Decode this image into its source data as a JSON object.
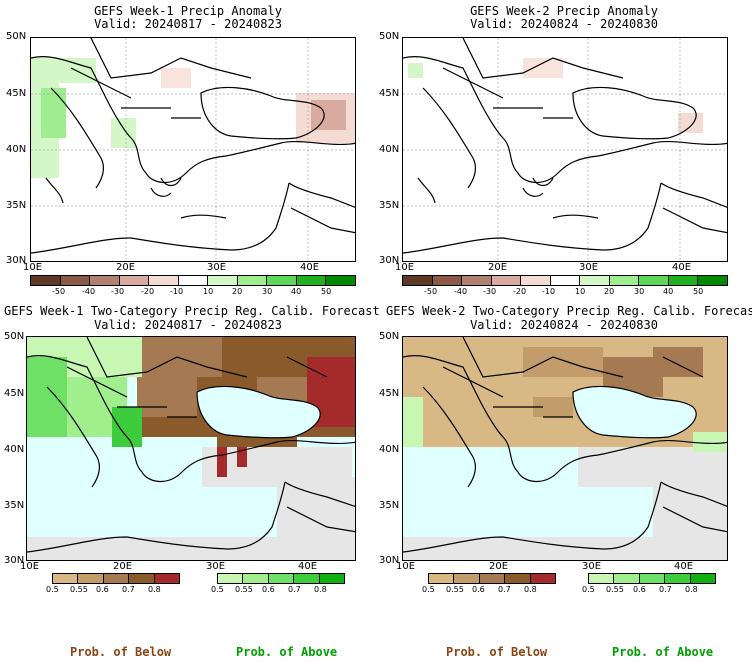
{
  "panels": [
    {
      "title": "GEFS Week-1 Precip Anomaly",
      "valid": "Valid: 20240817 - 20240823"
    },
    {
      "title": "GEFS Week-2 Precip Anomaly",
      "valid": "Valid: 20240824 - 20240830"
    },
    {
      "title": "GEFS Week-1 Two-Category Precip Reg. Calib. Forecast",
      "valid": "Valid: 20240817 - 20240823"
    },
    {
      "title": "GEFS Week-2 Two-Category Precip Reg. Calib. Forecast",
      "valid": "Valid: 20240824 - 20240830"
    }
  ],
  "axes": {
    "lat_labels": [
      "50N",
      "45N",
      "40N",
      "35N",
      "30N"
    ],
    "lon_labels": [
      "10E",
      "20E",
      "30E",
      "40E"
    ]
  },
  "anomaly_colorbar": {
    "labels": [
      "-50",
      "-40",
      "-30",
      "-20",
      "-10",
      "10",
      "20",
      "30",
      "40",
      "50"
    ],
    "colors": [
      "#5e3a26",
      "#8a5a46",
      "#b08070",
      "#d8aaa0",
      "#f4dcd4",
      "#ffffff",
      "#d4f7c8",
      "#9eee90",
      "#5ed85a",
      "#20b020",
      "#008a00"
    ]
  },
  "below_colorbar": {
    "labels": [
      "0.5",
      "0.55",
      "0.6",
      "0.7",
      "0.8"
    ],
    "colors": [
      "#d8b985",
      "#c39c6c",
      "#a57a52",
      "#8b5a2b",
      "#a52a2a"
    ]
  },
  "above_colorbar": {
    "labels": [
      "0.5",
      "0.55",
      "0.6",
      "0.7",
      "0.8"
    ],
    "colors": [
      "#c8f7b4",
      "#a0ef8c",
      "#6fe066",
      "#3ccc3c",
      "#10b010"
    ]
  },
  "footer": {
    "below": "Prob. of Below",
    "above": "Prob. of Above"
  },
  "colors": {
    "below_text": "#8b4513",
    "above_text": "#00a000",
    "sea": "#e0ffff",
    "no_data": "#e6e6e6"
  }
}
